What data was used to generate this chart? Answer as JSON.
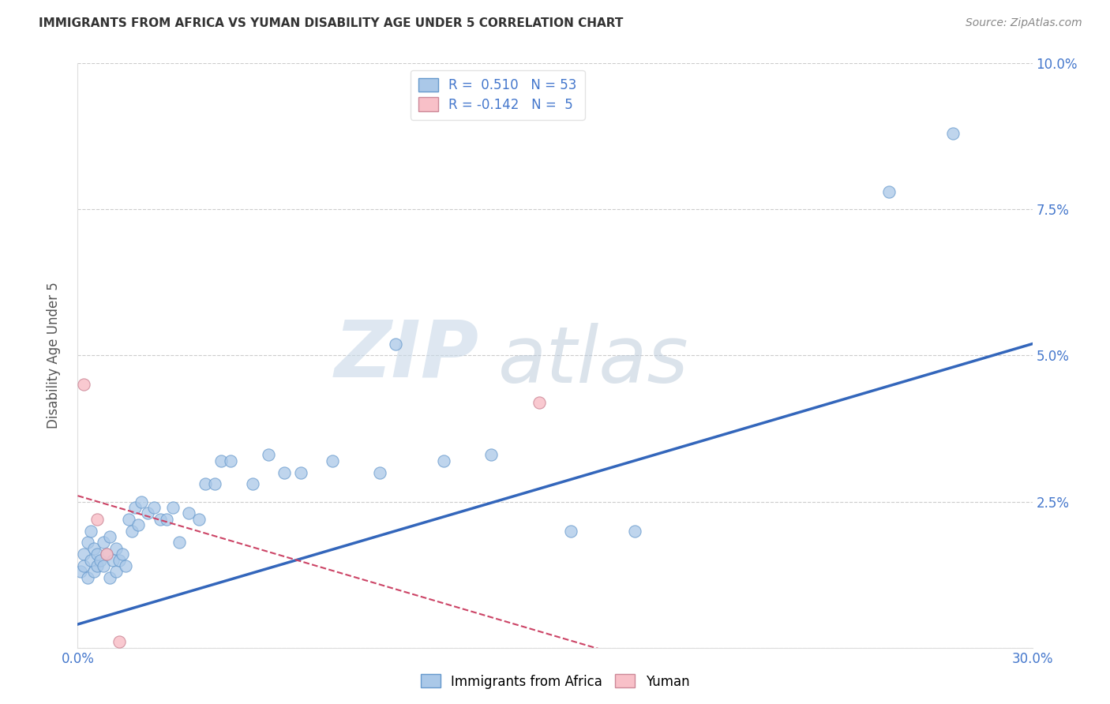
{
  "title": "IMMIGRANTS FROM AFRICA VS YUMAN DISABILITY AGE UNDER 5 CORRELATION CHART",
  "source": "Source: ZipAtlas.com",
  "ylabel_label": "Disability Age Under 5",
  "xmin": 0.0,
  "xmax": 0.3,
  "ymin": 0.0,
  "ymax": 0.1,
  "xticks": [
    0.0,
    0.05,
    0.1,
    0.15,
    0.2,
    0.25,
    0.3
  ],
  "yticks": [
    0.0,
    0.025,
    0.05,
    0.075,
    0.1
  ],
  "ytick_labels_right": [
    "",
    "2.5%",
    "5.0%",
    "7.5%",
    "10.0%"
  ],
  "blue_scatter_x": [
    0.001,
    0.002,
    0.002,
    0.003,
    0.003,
    0.004,
    0.004,
    0.005,
    0.005,
    0.006,
    0.006,
    0.007,
    0.008,
    0.008,
    0.009,
    0.01,
    0.01,
    0.011,
    0.012,
    0.012,
    0.013,
    0.014,
    0.015,
    0.016,
    0.017,
    0.018,
    0.019,
    0.02,
    0.022,
    0.024,
    0.026,
    0.028,
    0.03,
    0.032,
    0.035,
    0.038,
    0.04,
    0.043,
    0.045,
    0.048,
    0.055,
    0.06,
    0.065,
    0.07,
    0.08,
    0.095,
    0.1,
    0.115,
    0.13,
    0.155,
    0.175,
    0.255,
    0.275
  ],
  "blue_scatter_y": [
    0.013,
    0.016,
    0.014,
    0.018,
    0.012,
    0.015,
    0.02,
    0.013,
    0.017,
    0.014,
    0.016,
    0.015,
    0.014,
    0.018,
    0.016,
    0.012,
    0.019,
    0.015,
    0.013,
    0.017,
    0.015,
    0.016,
    0.014,
    0.022,
    0.02,
    0.024,
    0.021,
    0.025,
    0.023,
    0.024,
    0.022,
    0.022,
    0.024,
    0.018,
    0.023,
    0.022,
    0.028,
    0.028,
    0.032,
    0.032,
    0.028,
    0.033,
    0.03,
    0.03,
    0.032,
    0.03,
    0.052,
    0.032,
    0.033,
    0.02,
    0.02,
    0.078,
    0.088
  ],
  "pink_scatter_x": [
    0.002,
    0.006,
    0.009,
    0.013,
    0.145
  ],
  "pink_scatter_y": [
    0.045,
    0.022,
    0.016,
    0.001,
    0.042
  ],
  "blue_line_x": [
    0.0,
    0.3
  ],
  "blue_line_y": [
    0.004,
    0.052
  ],
  "pink_line_x": [
    0.0,
    0.175
  ],
  "pink_line_y": [
    0.026,
    -0.002
  ],
  "legend_blue_r": "0.510",
  "legend_blue_n": "53",
  "legend_pink_r": "-0.142",
  "legend_pink_n": "5",
  "blue_scatter_color": "#aac8e8",
  "blue_scatter_edge": "#6699cc",
  "blue_line_color": "#3366bb",
  "pink_scatter_color": "#f8c0c8",
  "pink_scatter_edge": "#cc8898",
  "pink_line_color": "#cc4466",
  "scatter_size": 120,
  "watermark_zip": "ZIP",
  "watermark_atlas": "atlas",
  "background_color": "#ffffff",
  "grid_color": "#cccccc",
  "tick_label_color": "#4477cc",
  "title_color": "#333333",
  "source_color": "#888888",
  "ylabel_color": "#555555"
}
